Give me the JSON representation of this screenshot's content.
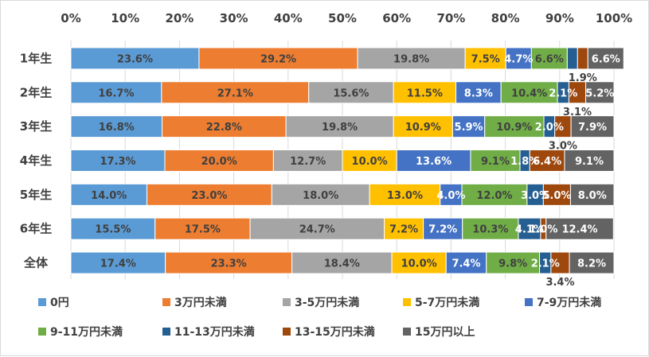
{
  "chart_data": {
    "type": "bar",
    "orientation": "horizontal",
    "stacked": "percent",
    "xlim": [
      0,
      100
    ],
    "x_ticks": [
      "0%",
      "10%",
      "20%",
      "30%",
      "40%",
      "50%",
      "60%",
      "70%",
      "80%",
      "90%",
      "100%"
    ],
    "categories": [
      "1年生",
      "2年生",
      "3年生",
      "4年生",
      "5年生",
      "6年生",
      "全体"
    ],
    "series": [
      {
        "name": "0円",
        "color": "#5b9bd5",
        "label_color": "#404040",
        "values": [
          23.6,
          16.7,
          16.8,
          17.3,
          14.0,
          15.5,
          17.4
        ]
      },
      {
        "name": "3万円未満",
        "color": "#ed7d31",
        "label_color": "#404040",
        "values": [
          29.2,
          27.1,
          22.8,
          20.0,
          23.0,
          17.5,
          23.3
        ]
      },
      {
        "name": "3-5万円未満",
        "color": "#a5a5a5",
        "label_color": "#404040",
        "values": [
          19.8,
          15.6,
          19.8,
          12.7,
          18.0,
          24.7,
          18.4
        ]
      },
      {
        "name": "5-7万円未満",
        "color": "#ffc000",
        "label_color": "#404040",
        "values": [
          7.5,
          11.5,
          10.9,
          10.0,
          13.0,
          7.2,
          10.0
        ]
      },
      {
        "name": "7-9万円未満",
        "color": "#4472c4",
        "label_color": "#ffffff",
        "values": [
          4.7,
          8.3,
          5.9,
          13.6,
          4.0,
          7.2,
          7.4
        ]
      },
      {
        "name": "9-11万円未満",
        "color": "#70ad47",
        "label_color": "#404040",
        "values": [
          6.6,
          10.4,
          10.9,
          9.1,
          12.0,
          10.3,
          9.8
        ]
      },
      {
        "name": "11-13万円未満",
        "color": "#255e91",
        "label_color": "#ffffff",
        "values": [
          1.9,
          2.1,
          2.0,
          1.8,
          3.0,
          4.1,
          2.1
        ]
      },
      {
        "name": "13-15万円未満",
        "color": "#9e480e",
        "label_color": "#ffffff",
        "values": [
          1.9,
          3.1,
          3.0,
          6.4,
          5.0,
          1.0,
          3.4
        ]
      },
      {
        "name": "15万円以上",
        "color": "#636363",
        "label_color": "#ffffff",
        "values": [
          6.6,
          5.2,
          7.9,
          9.1,
          8.0,
          12.4,
          8.2
        ]
      }
    ],
    "data_labels": [
      [
        "23.6%",
        "29.2%",
        "19.8%",
        "7.5%",
        "4.7%",
        "6.6%",
        "",
        "",
        "6.6%"
      ],
      [
        "16.7%",
        "27.1%",
        "15.6%",
        "11.5%",
        "8.3%",
        "10.4%",
        "2.1%",
        "",
        "5.2%"
      ],
      [
        "16.8%",
        "22.8%",
        "19.8%",
        "10.9%",
        "5.9%",
        "10.9%",
        "2.0%",
        "",
        "7.9%"
      ],
      [
        "17.3%",
        "20.0%",
        "12.7%",
        "10.0%",
        "13.6%",
        "9.1%",
        "1.8%",
        "6.4%",
        "9.1%"
      ],
      [
        "14.0%",
        "23.0%",
        "18.0%",
        "13.0%",
        "4.0%",
        "12.0%",
        "3.0%",
        "5.0%",
        "8.0%"
      ],
      [
        "15.5%",
        "17.5%",
        "24.7%",
        "7.2%",
        "7.2%",
        "10.3%",
        "4.1%",
        "1.0%",
        "12.4%"
      ],
      [
        "17.4%",
        "23.3%",
        "18.4%",
        "10.0%",
        "7.4%",
        "9.8%",
        "2.1%",
        "",
        "8.2%"
      ]
    ],
    "callouts": [
      {
        "row": 0,
        "series": 7,
        "text": "1.9%"
      },
      {
        "row": 1,
        "series": 7,
        "text": "3.1%"
      },
      {
        "row": 2,
        "series": 7,
        "text": "3.0%"
      },
      {
        "row": 6,
        "series": 7,
        "text": "3.4%"
      }
    ],
    "legend_position": "bottom",
    "grid": true
  }
}
